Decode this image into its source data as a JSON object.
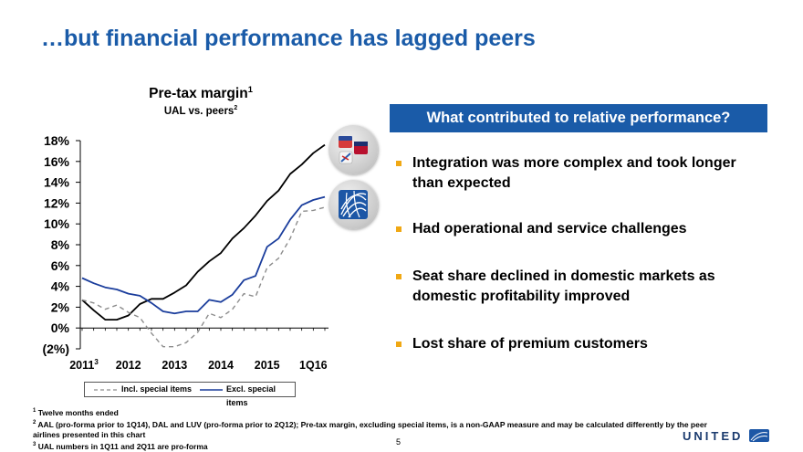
{
  "slide": {
    "title": "…but financial performance has lagged peers",
    "page_number": "5",
    "brand": "UNITED"
  },
  "colors": {
    "accent": "#1a5ba8",
    "bullet": "#f0a814",
    "series_incl": "#8c8c8c",
    "series_excl": "#1a3d9c",
    "series_peers": "#000000"
  },
  "chart_data": {
    "type": "line",
    "title": "Pre-tax margin",
    "title_sup": "1",
    "subtitle": "UAL vs. peers",
    "subtitle_sup": "2",
    "ylim": [
      -2,
      18
    ],
    "yticks": [
      {
        "value": 18,
        "label": "18%"
      },
      {
        "value": 16,
        "label": "16%"
      },
      {
        "value": 14,
        "label": "14%"
      },
      {
        "value": 12,
        "label": "12%"
      },
      {
        "value": 10,
        "label": "10%"
      },
      {
        "value": 8,
        "label": "8%"
      },
      {
        "value": 6,
        "label": "6%"
      },
      {
        "value": 4,
        "label": "4%"
      },
      {
        "value": 2,
        "label": "2%"
      },
      {
        "value": 0,
        "label": "0%"
      },
      {
        "value": -2,
        "label": "(2%)"
      }
    ],
    "xticks": [
      {
        "index": 0,
        "label": "2011",
        "sup": "3"
      },
      {
        "index": 4,
        "label": "2012",
        "sup": ""
      },
      {
        "index": 8,
        "label": "2013",
        "sup": ""
      },
      {
        "index": 12,
        "label": "2014",
        "sup": ""
      },
      {
        "index": 16,
        "label": "2015",
        "sup": ""
      },
      {
        "index": 20,
        "label": "1Q16",
        "sup": ""
      }
    ],
    "n_points": 22,
    "series": [
      {
        "name": "Peers (AAL, DAL, LUV)",
        "style": "solid-black",
        "values": [
          2.7,
          1.7,
          0.8,
          0.8,
          1.2,
          2.3,
          2.8,
          2.8,
          3.4,
          4.1,
          5.4,
          6.4,
          7.2,
          8.6,
          9.6,
          10.8,
          12.2,
          13.2,
          14.8,
          15.7,
          16.8,
          17.6
        ]
      },
      {
        "name": "Excl. special items",
        "style": "solid-blue",
        "values": [
          4.8,
          4.3,
          3.9,
          3.7,
          3.3,
          3.1,
          2.4,
          1.6,
          1.4,
          1.6,
          1.6,
          2.7,
          2.5,
          3.2,
          4.6,
          5.0,
          7.8,
          8.6,
          10.4,
          11.8,
          12.3,
          12.6
        ]
      },
      {
        "name": "Incl. special items",
        "style": "dashed-grey",
        "values": [
          2.7,
          2.4,
          1.8,
          2.2,
          1.5,
          1.0,
          -0.5,
          -1.8,
          -1.8,
          -1.4,
          -0.4,
          1.4,
          1.0,
          1.8,
          3.3,
          3.0,
          5.8,
          6.7,
          8.6,
          11.2,
          11.3,
          11.6
        ]
      }
    ],
    "legend": [
      {
        "label": "Incl. special items",
        "style": "dashed-grey"
      },
      {
        "label": "Excl. special items",
        "style": "solid-blue"
      }
    ]
  },
  "panel": {
    "header": "What contributed to relative performance?",
    "bullets": [
      "Integration was more complex and took longer than expected",
      "Had operational and service challenges",
      "Seat share declined in domestic markets as domestic profitability improved",
      "Lost share of premium customers"
    ]
  },
  "footnotes": [
    {
      "num": "1",
      "text": "Twelve months ended"
    },
    {
      "num": "2",
      "text": "AAL (pro-forma prior to 1Q14), DAL and LUV (pro-forma prior to 2Q12); Pre-tax margin, excluding special items, is a non-GAAP measure and may be calculated differently by the peer"
    },
    {
      "num": "",
      "text": "airlines presented in this chart"
    },
    {
      "num": "3",
      "text": "UAL numbers in 1Q11 and 2Q11 are pro-forma"
    }
  ],
  "logos": [
    {
      "name": "peer-airlines-logo-icon"
    },
    {
      "name": "united-globe-logo-icon"
    }
  ]
}
